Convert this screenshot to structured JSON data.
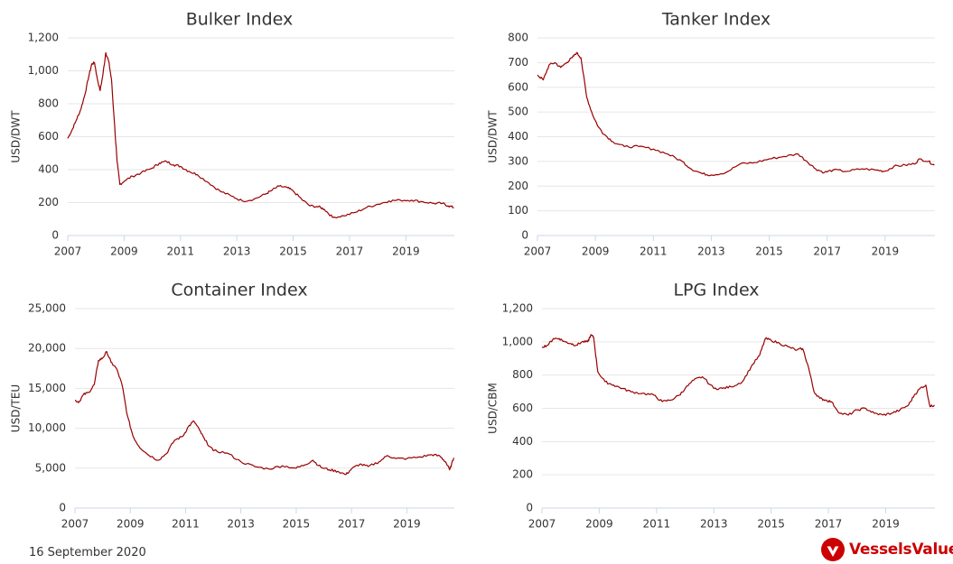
{
  "date": "16 September 2020",
  "brand": {
    "name": "VesselsValue",
    "color": "#cc0000",
    "icon": "vesselsvalue-logo-icon"
  },
  "line_color": "#990000",
  "chart_data": [
    {
      "type": "line",
      "title": "Bulker Index",
      "xlabel": "",
      "ylabel": "USD/DWT",
      "xlim": [
        2007.0,
        2020.72
      ],
      "ylim": [
        0,
        1200
      ],
      "x_ticks": [
        "2007",
        "2009",
        "2011",
        "2013",
        "2015",
        "2017",
        "2019"
      ],
      "y_ticks": [
        "0",
        "200",
        "400",
        "600",
        "800",
        "1,000",
        "1,200"
      ],
      "grid": true,
      "series": [
        {
          "x": [
            2007.0,
            2007.15,
            2007.3,
            2007.45,
            2007.6,
            2007.75,
            2007.85,
            2007.95,
            2008.05,
            2008.15,
            2008.25,
            2008.35,
            2008.45,
            2008.55,
            2008.65,
            2008.75,
            2008.85,
            2009.0,
            2009.3,
            2009.6,
            2010.0,
            2010.25,
            2010.5,
            2010.75,
            2011.0,
            2011.3,
            2011.6,
            2012.0,
            2012.4,
            2012.8,
            2013.2,
            2013.6,
            2014.0,
            2014.2,
            2014.5,
            2014.8,
            2015.0,
            2015.3,
            2015.6,
            2015.9,
            2016.1,
            2016.4,
            2016.8,
            2017.2,
            2017.6,
            2018.0,
            2018.4,
            2018.8,
            2019.2,
            2019.6,
            2020.0,
            2020.3,
            2020.5,
            2020.7
          ],
          "y": [
            590,
            640,
            700,
            760,
            850,
            970,
            1040,
            1050,
            950,
            880,
            980,
            1110,
            1060,
            950,
            700,
            450,
            310,
            330,
            360,
            380,
            410,
            440,
            450,
            430,
            420,
            390,
            370,
            320,
            270,
            240,
            210,
            220,
            250,
            270,
            300,
            290,
            270,
            220,
            180,
            175,
            160,
            110,
            120,
            140,
            170,
            190,
            210,
            215,
            215,
            205,
            195,
            195,
            180,
            170
          ]
        }
      ]
    },
    {
      "type": "line",
      "title": "Tanker Index",
      "xlabel": "",
      "ylabel": "USD/DWT",
      "xlim": [
        2007.0,
        2020.72
      ],
      "ylim": [
        0,
        800
      ],
      "x_ticks": [
        "2007",
        "2009",
        "2011",
        "2013",
        "2015",
        "2017",
        "2019"
      ],
      "y_ticks": [
        "0",
        "100",
        "200",
        "300",
        "400",
        "500",
        "600",
        "700",
        "800"
      ],
      "grid": true,
      "series": [
        {
          "x": [
            2007.0,
            2007.2,
            2007.4,
            2007.6,
            2007.8,
            2008.0,
            2008.2,
            2008.35,
            2008.5,
            2008.7,
            2008.9,
            2009.1,
            2009.3,
            2009.6,
            2010.0,
            2010.5,
            2011.0,
            2011.5,
            2012.0,
            2012.3,
            2012.7,
            2013.0,
            2013.5,
            2014.0,
            2014.5,
            2015.0,
            2015.5,
            2016.0,
            2016.3,
            2016.6,
            2016.9,
            2017.2,
            2017.7,
            2018.2,
            2018.7,
            2019.0,
            2019.3,
            2019.7,
            2020.0,
            2020.2,
            2020.5,
            2020.7
          ],
          "y": [
            650,
            630,
            690,
            700,
            680,
            700,
            720,
            740,
            720,
            560,
            490,
            440,
            410,
            380,
            360,
            360,
            350,
            330,
            300,
            270,
            250,
            245,
            255,
            290,
            295,
            310,
            320,
            330,
            300,
            270,
            255,
            265,
            260,
            270,
            265,
            260,
            280,
            285,
            290,
            310,
            300,
            285
          ]
        }
      ]
    },
    {
      "type": "line",
      "title": "Container Index",
      "xlabel": "",
      "ylabel": "USD/TEU",
      "xlim": [
        2007.0,
        2020.72
      ],
      "ylim": [
        0,
        25000
      ],
      "x_ticks": [
        "2007",
        "2009",
        "2011",
        "2013",
        "2015",
        "2017",
        "2019"
      ],
      "y_ticks": [
        "0",
        "5,000",
        "10,000",
        "15,000",
        "20,000",
        "25,000"
      ],
      "grid": true,
      "series": [
        {
          "x": [
            2007.0,
            2007.15,
            2007.3,
            2007.5,
            2007.7,
            2007.85,
            2008.0,
            2008.15,
            2008.3,
            2008.5,
            2008.7,
            2008.9,
            2009.1,
            2009.3,
            2009.6,
            2010.0,
            2010.3,
            2010.6,
            2010.9,
            2011.1,
            2011.3,
            2011.5,
            2011.7,
            2012.0,
            2012.5,
            2013.0,
            2013.5,
            2014.0,
            2014.5,
            2015.0,
            2015.3,
            2015.6,
            2015.9,
            2016.2,
            2016.5,
            2016.8,
            2017.0,
            2017.3,
            2017.6,
            2018.0,
            2018.3,
            2018.6,
            2019.0,
            2019.5,
            2019.9,
            2020.2,
            2020.4,
            2020.55,
            2020.7
          ],
          "y": [
            13500,
            13300,
            14200,
            14500,
            15500,
            18500,
            18800,
            19600,
            18300,
            17500,
            15500,
            11500,
            9000,
            7800,
            6800,
            6000,
            6800,
            8500,
            9000,
            10200,
            10900,
            9800,
            8500,
            7200,
            6900,
            5800,
            5200,
            4900,
            5300,
            5000,
            5400,
            6000,
            5100,
            4800,
            4600,
            4200,
            4900,
            5500,
            5200,
            5800,
            6600,
            6200,
            6200,
            6400,
            6700,
            6500,
            5800,
            4800,
            6300
          ]
        }
      ]
    },
    {
      "type": "line",
      "title": "LPG Index",
      "xlabel": "",
      "ylabel": "USD/CBM",
      "xlim": [
        2007.0,
        2020.72
      ],
      "ylim": [
        0,
        1200
      ],
      "x_ticks": [
        "2007",
        "2009",
        "2011",
        "2013",
        "2015",
        "2017",
        "2019"
      ],
      "y_ticks": [
        "0",
        "200",
        "400",
        "600",
        "800",
        "1,000",
        "1,200"
      ],
      "grid": true,
      "series": [
        {
          "x": [
            2007.0,
            2007.2,
            2007.4,
            2007.6,
            2007.8,
            2008.0,
            2008.2,
            2008.4,
            2008.6,
            2008.7,
            2008.8,
            2008.95,
            2009.2,
            2009.5,
            2009.8,
            2010.1,
            2010.5,
            2010.9,
            2011.2,
            2011.5,
            2011.8,
            2012.0,
            2012.3,
            2012.6,
            2013.0,
            2013.3,
            2013.6,
            2014.0,
            2014.3,
            2014.6,
            2014.8,
            2015.0,
            2015.3,
            2015.6,
            2015.9,
            2016.1,
            2016.3,
            2016.5,
            2016.7,
            2016.9,
            2017.1,
            2017.4,
            2017.7,
            2018.0,
            2018.3,
            2018.6,
            2018.9,
            2019.2,
            2019.5,
            2019.8,
            2020.0,
            2020.2,
            2020.4,
            2020.55,
            2020.7
          ],
          "y": [
            970,
            980,
            1020,
            1020,
            1000,
            990,
            980,
            1000,
            1000,
            1040,
            1030,
            820,
            760,
            740,
            720,
            700,
            690,
            680,
            640,
            650,
            680,
            720,
            770,
            790,
            720,
            720,
            730,
            760,
            850,
            920,
            1020,
            1010,
            990,
            970,
            950,
            960,
            850,
            700,
            660,
            650,
            640,
            570,
            560,
            590,
            600,
            570,
            560,
            570,
            590,
            620,
            680,
            720,
            740,
            610,
            620
          ]
        }
      ]
    }
  ]
}
